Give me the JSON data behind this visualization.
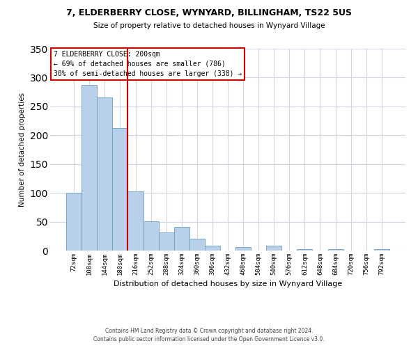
{
  "title": "7, ELDERBERRY CLOSE, WYNYARD, BILLINGHAM, TS22 5US",
  "subtitle": "Size of property relative to detached houses in Wynyard Village",
  "xlabel": "Distribution of detached houses by size in Wynyard Village",
  "ylabel": "Number of detached properties",
  "footnote1": "Contains HM Land Registry data © Crown copyright and database right 2024.",
  "footnote2": "Contains public sector information licensed under the Open Government Licence v3.0.",
  "bar_labels": [
    "72sqm",
    "108sqm",
    "144sqm",
    "180sqm",
    "216sqm",
    "252sqm",
    "288sqm",
    "324sqm",
    "360sqm",
    "396sqm",
    "432sqm",
    "468sqm",
    "504sqm",
    "540sqm",
    "576sqm",
    "612sqm",
    "648sqm",
    "684sqm",
    "720sqm",
    "756sqm",
    "792sqm"
  ],
  "bar_values": [
    100,
    287,
    265,
    212,
    103,
    51,
    31,
    41,
    20,
    8,
    0,
    6,
    0,
    8,
    0,
    3,
    0,
    2,
    0,
    0,
    2
  ],
  "bar_color": "#b8d0ea",
  "bar_edge_color": "#6a9ec0",
  "vline_color": "#cc0000",
  "vline_pos": 3.5,
  "annotation_title": "7 ELDERBERRY CLOSE: 200sqm",
  "annotation_line1": "← 69% of detached houses are smaller (786)",
  "annotation_line2": "30% of semi-detached houses are larger (338) →",
  "annotation_box_color": "#ffffff",
  "annotation_box_edge_color": "#cc0000",
  "ylim": [
    0,
    350
  ],
  "yticks": [
    0,
    50,
    100,
    150,
    200,
    250,
    300,
    350
  ],
  "bg_color": "#ffffff",
  "grid_color": "#d0d8e8"
}
